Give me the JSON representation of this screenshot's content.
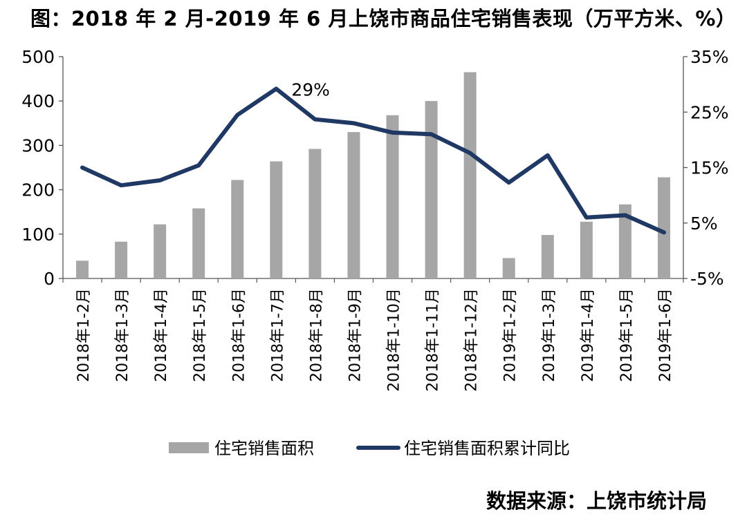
{
  "title": "图：2018 年 2 月-2019 年 6 月上饶市商品住宅销售表现（万平方米、%）",
  "source": "数据来源：上饶市统计局",
  "chart_data": {
    "type": "bar+line",
    "categories": [
      "2018年1-2月",
      "2018年1-3月",
      "2018年1-4月",
      "2018年1-5月",
      "2018年1-6月",
      "2018年1-7月",
      "2018年1-8月",
      "2018年1-9月",
      "2018年1-10月",
      "2018年1-11月",
      "2018年1-12月",
      "2019年1-2月",
      "2019年1-3月",
      "2019年1-4月",
      "2019年1-5月",
      "2019年1-6月"
    ],
    "series": [
      {
        "name": "住宅销售面积",
        "type": "bar",
        "axis": "left",
        "color": "#a6a6a6",
        "values": [
          40,
          83,
          122,
          158,
          222,
          264,
          292,
          330,
          368,
          400,
          465,
          46,
          98,
          128,
          167,
          228
        ]
      },
      {
        "name": "住宅销售面积累计同比",
        "type": "line",
        "axis": "right",
        "color": "#1f3864",
        "values": [
          15.0,
          11.8,
          12.7,
          15.4,
          24.5,
          29.2,
          23.7,
          23.0,
          21.3,
          21.0,
          17.6,
          12.3,
          17.2,
          6.0,
          6.4,
          3.3
        ]
      }
    ],
    "y_left": {
      "min": 0,
      "max": 500,
      "ticks": [
        "0",
        "100",
        "200",
        "300",
        "400",
        "500"
      ]
    },
    "y_right": {
      "min": -5,
      "max": 35,
      "ticks": [
        "-5%",
        "5%",
        "15%",
        "25%",
        "35%"
      ]
    },
    "annotation": {
      "text": "29%",
      "index": 5
    },
    "legend_position": "bottom",
    "grid": false
  }
}
